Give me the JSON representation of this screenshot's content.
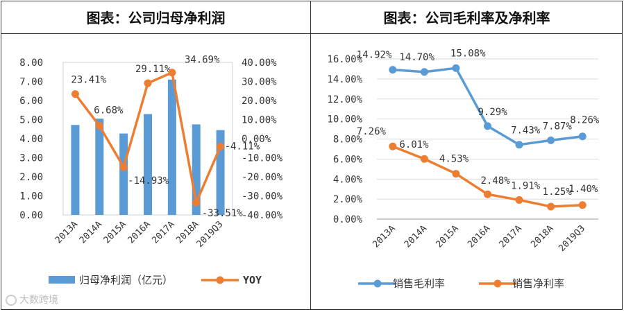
{
  "chart_data": [
    {
      "type": "bar+line",
      "title": "图表：公司归母净利润",
      "categories": [
        "2013A",
        "2014A",
        "2015A",
        "2016A",
        "2017A",
        "2018A",
        "2019Q3"
      ],
      "series": [
        {
          "name": "归母净利润（亿元）",
          "type": "bar",
          "axis": "left",
          "color": "#5b9bd5",
          "values": [
            4.72,
            5.05,
            4.27,
            5.29,
            7.1,
            4.75,
            4.45
          ]
        },
        {
          "name": "YOY",
          "type": "line",
          "axis": "right",
          "color": "#ed7d31",
          "values": [
            23.41,
            6.68,
            -14.93,
            29.11,
            34.69,
            -33.51,
            -4.11
          ],
          "labels": [
            "23.41%",
            "6.68%",
            "-14.93%",
            "29.11%",
            "34.69%",
            "-33.51%",
            "-4.11%"
          ]
        }
      ],
      "ylim_left": [
        0,
        8
      ],
      "yticks_left": [
        "0.00",
        "1.00",
        "2.00",
        "3.00",
        "4.00",
        "5.00",
        "6.00",
        "7.00",
        "8.00"
      ],
      "ylim_right": [
        -40,
        40
      ],
      "yticks_right": [
        "-40.00%",
        "-30.00%",
        "-20.00%",
        "-10.00%",
        "0.00%",
        "10.00%",
        "20.00%",
        "30.00%",
        "40.00%"
      ],
      "legend": "bottom",
      "grid": false
    },
    {
      "type": "line",
      "title": "图表：公司毛利率及净利率",
      "categories": [
        "2013A",
        "2014A",
        "2015A",
        "2016A",
        "2017A",
        "2018A",
        "2019Q3"
      ],
      "series": [
        {
          "name": "销售毛利率",
          "color": "#5b9bd5",
          "values": [
            14.92,
            14.7,
            15.08,
            9.29,
            7.43,
            7.87,
            8.26
          ],
          "labels": [
            "14.92%",
            "14.70%",
            "15.08%",
            "9.29%",
            "7.43%",
            "7.87%",
            "8.26%"
          ]
        },
        {
          "name": "销售净利率",
          "color": "#ed7d31",
          "values": [
            7.26,
            6.01,
            4.53,
            2.48,
            1.91,
            1.25,
            1.4
          ],
          "labels": [
            "7.26%",
            "6.01%",
            "4.53%",
            "2.48%",
            "1.91%",
            "1.25%",
            "1.40%"
          ]
        }
      ],
      "ylim": [
        0,
        16
      ],
      "yticks": [
        "0.00%",
        "2.00%",
        "4.00%",
        "6.00%",
        "8.00%",
        "10.00%",
        "12.00%",
        "14.00%",
        "16.00%"
      ],
      "legend": "bottom",
      "grid": true
    }
  ],
  "watermark": {
    "text": "大数跨境",
    "icon": "camera-icon"
  }
}
